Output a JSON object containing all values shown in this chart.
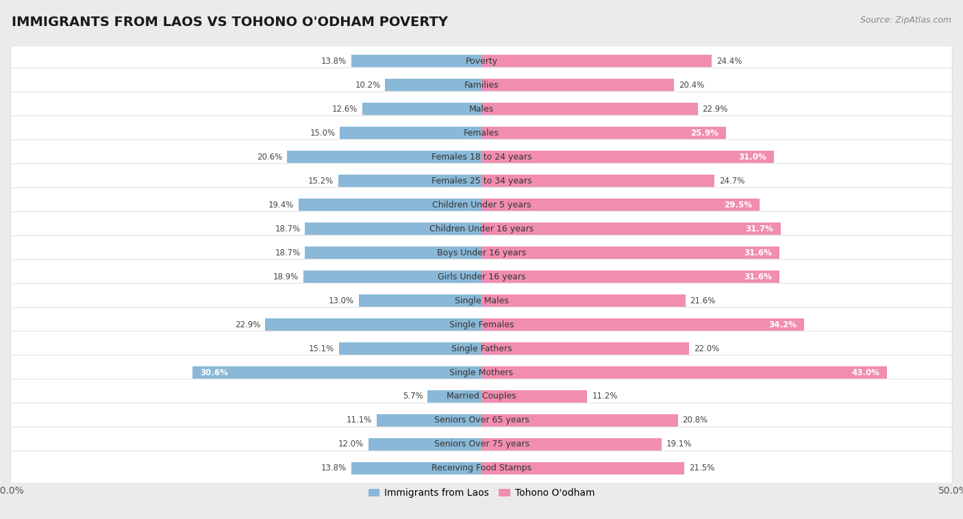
{
  "title": "IMMIGRANTS FROM LAOS VS TOHONO O'ODHAM POVERTY",
  "source": "Source: ZipAtlas.com",
  "categories": [
    "Poverty",
    "Families",
    "Males",
    "Females",
    "Females 18 to 24 years",
    "Females 25 to 34 years",
    "Children Under 5 years",
    "Children Under 16 years",
    "Boys Under 16 years",
    "Girls Under 16 years",
    "Single Males",
    "Single Females",
    "Single Fathers",
    "Single Mothers",
    "Married Couples",
    "Seniors Over 65 years",
    "Seniors Over 75 years",
    "Receiving Food Stamps"
  ],
  "left_values": [
    13.8,
    10.2,
    12.6,
    15.0,
    20.6,
    15.2,
    19.4,
    18.7,
    18.7,
    18.9,
    13.0,
    22.9,
    15.1,
    30.6,
    5.7,
    11.1,
    12.0,
    13.8
  ],
  "right_values": [
    24.4,
    20.4,
    22.9,
    25.9,
    31.0,
    24.7,
    29.5,
    31.7,
    31.6,
    31.6,
    21.6,
    34.2,
    22.0,
    43.0,
    11.2,
    20.8,
    19.1,
    21.5
  ],
  "left_color": "#89b8d8",
  "right_color": "#f08db0",
  "left_label": "Immigrants from Laos",
  "right_label": "Tohono O'odham",
  "axis_max": 50.0,
  "bg_color": "#ebebeb",
  "row_bg_color": "#ffffff",
  "row_border_color": "#d8d8d8",
  "title_fontsize": 14,
  "cat_fontsize": 9,
  "val_fontsize": 8.5,
  "source_fontsize": 9,
  "tick_fontsize": 10
}
